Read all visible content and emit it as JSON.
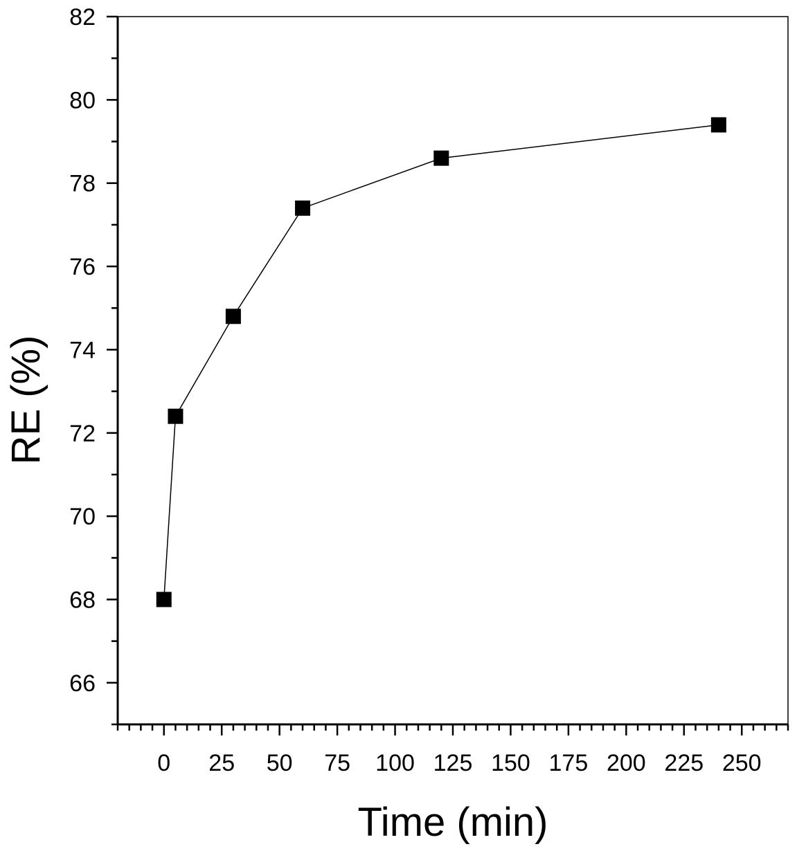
{
  "chart_data": {
    "type": "scatter",
    "title": "",
    "xlabel": "Time (min)",
    "ylabel": "RE (%)",
    "xlim": [
      -20,
      270
    ],
    "ylim": [
      65,
      82
    ],
    "x_ticks": [
      0,
      25,
      50,
      75,
      100,
      125,
      150,
      175,
      200,
      225,
      250
    ],
    "x_tick_labels": [
      "0",
      "25",
      "50",
      "75",
      "100",
      "125",
      "150",
      "175",
      "200",
      "225",
      "250"
    ],
    "y_ticks": [
      66,
      68,
      70,
      72,
      74,
      76,
      78,
      80,
      82
    ],
    "y_tick_labels": [
      "66",
      "68",
      "70",
      "72",
      "74",
      "76",
      "78",
      "80",
      "82"
    ],
    "series": [
      {
        "x": [
          0,
          5,
          30,
          60,
          120,
          240
        ],
        "y": [
          68.0,
          72.4,
          74.8,
          77.4,
          78.6,
          79.4
        ],
        "marker": "square",
        "line": true,
        "color": "#000000"
      }
    ],
    "grid": false,
    "legend": false
  }
}
